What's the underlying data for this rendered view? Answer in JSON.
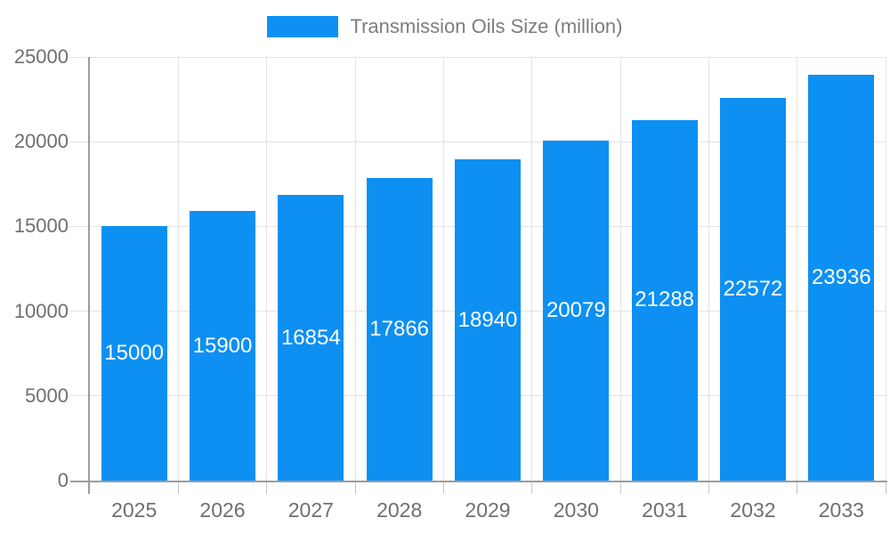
{
  "legend": {
    "label": "Transmission Oils Size (million)"
  },
  "chart_data": {
    "type": "bar",
    "title": "Transmission Oils Size (million)",
    "categories": [
      "2025",
      "2026",
      "2027",
      "2028",
      "2029",
      "2030",
      "2031",
      "2032",
      "2033"
    ],
    "values": [
      15000,
      15900,
      16854,
      17866,
      18940,
      20079,
      21288,
      22572,
      23936
    ],
    "value_labels": [
      "15000",
      "15900",
      "16854",
      "17866",
      "18940",
      "20079",
      "21288",
      "22572",
      "23936"
    ],
    "xlabel": "",
    "ylabel": "",
    "ylim": [
      0,
      25000
    ],
    "ytick_step": 5000,
    "yticks_top_to_bottom": [
      "25000",
      "20000",
      "15000",
      "10000",
      "5000",
      "0"
    ],
    "grid": true,
    "legend_position": "top-center",
    "value_label_position": "inside-center"
  },
  "colors": {
    "bar": "#0d90f2",
    "grid": "#e3e3e3",
    "axis": "#9c9c9c",
    "axis_text": "#6f6f6f",
    "legend_text": "#7d7d7d",
    "value_text": "#ffffff",
    "background": "#ffffff"
  }
}
